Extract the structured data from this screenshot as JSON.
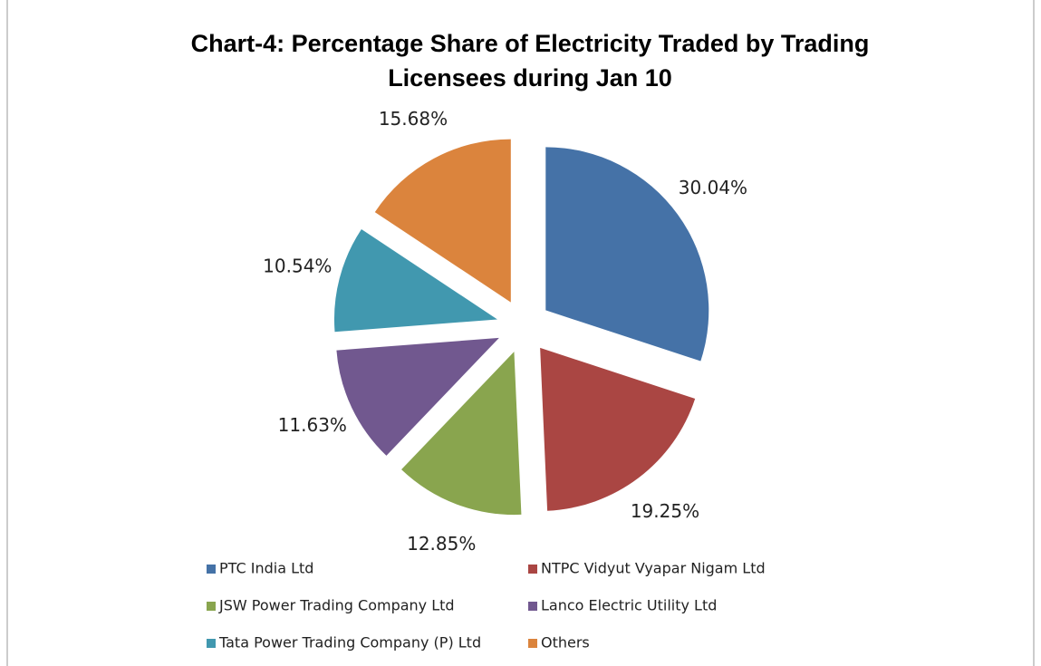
{
  "chart_data": {
    "type": "pie",
    "title": "Chart-4: Percentage Share of Electricity Traded by Trading Licensees during Jan 10",
    "categories": [
      "PTC India Ltd",
      "NTPC Vidyut Vyapar Nigam Ltd",
      "JSW Power Trading Company Ltd",
      "Lanco Electric Utility Ltd",
      "Tata Power Trading Company (P) Ltd",
      "Others"
    ],
    "values": [
      30.04,
      19.25,
      12.85,
      11.63,
      10.54,
      15.68
    ],
    "value_labels": [
      "30.04%",
      "19.25%",
      "12.85%",
      "11.63%",
      "10.54%",
      "15.68%"
    ],
    "colors": [
      "#4572a7",
      "#aa4643",
      "#89a54e",
      "#71588f",
      "#4198af",
      "#db843d"
    ],
    "exploded": true,
    "legend": "bottom"
  }
}
